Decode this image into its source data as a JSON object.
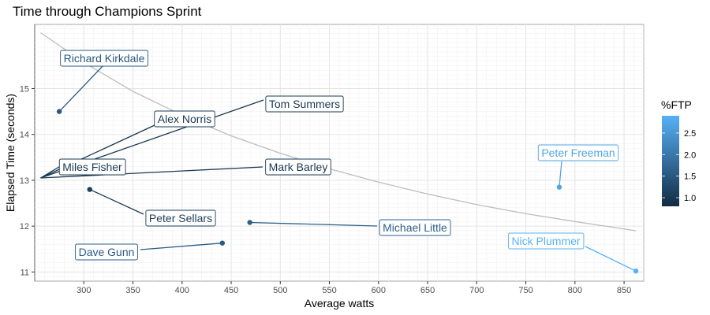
{
  "chart_data": {
    "type": "scatter",
    "title": "Time through Champions Sprint",
    "xlabel": "Average watts",
    "ylabel": "Elapsed Time (seconds)",
    "xlim": [
      250,
      870
    ],
    "ylim": [
      10.8,
      16.4
    ],
    "x_ticks": [
      300,
      350,
      400,
      450,
      500,
      550,
      600,
      650,
      700,
      750,
      800,
      850
    ],
    "y_ticks": [
      11,
      12,
      13,
      14,
      15
    ],
    "grid": true,
    "color_legend": {
      "title": "%FTP",
      "ticks": [
        1.0,
        1.5,
        2.0,
        2.5
      ],
      "range": [
        0.8,
        2.9
      ],
      "low_color": "#132B43",
      "high_color": "#56B1F7",
      "placement": "right"
    },
    "points": [
      {
        "name": "Richard Kirkdale",
        "x": 275,
        "y": 14.5,
        "ftp": 1.5
      },
      {
        "name": "Alex Norris",
        "x": 256,
        "y": 13.05,
        "ftp": 1.0
      },
      {
        "name": "Tom Summers",
        "x": 256,
        "y": 13.05,
        "ftp": 1.0
      },
      {
        "name": "Miles Fisher",
        "x": 256,
        "y": 13.05,
        "ftp": 1.0
      },
      {
        "name": "Mark Barley",
        "x": 256,
        "y": 13.05,
        "ftp": 1.0
      },
      {
        "name": "Peter Sellars",
        "x": 306,
        "y": 12.8,
        "ftp": 1.1
      },
      {
        "name": "Michael Little",
        "x": 469,
        "y": 12.08,
        "ftp": 1.6
      },
      {
        "name": "Dave Gunn",
        "x": 441,
        "y": 11.63,
        "ftp": 1.55
      },
      {
        "name": "Peter Freeman",
        "x": 784,
        "y": 12.85,
        "ftp": 2.7
      },
      {
        "name": "Nick Plummer",
        "x": 862,
        "y": 11.02,
        "ftp": 2.9
      }
    ],
    "trend_line": {
      "x": [
        256,
        300,
        350,
        400,
        450,
        500,
        550,
        600,
        650,
        700,
        750,
        800,
        862
      ],
      "y": [
        16.22,
        15.57,
        14.94,
        14.42,
        13.97,
        13.59,
        13.25,
        12.96,
        12.7,
        12.47,
        12.27,
        12.1,
        11.9
      ]
    }
  }
}
